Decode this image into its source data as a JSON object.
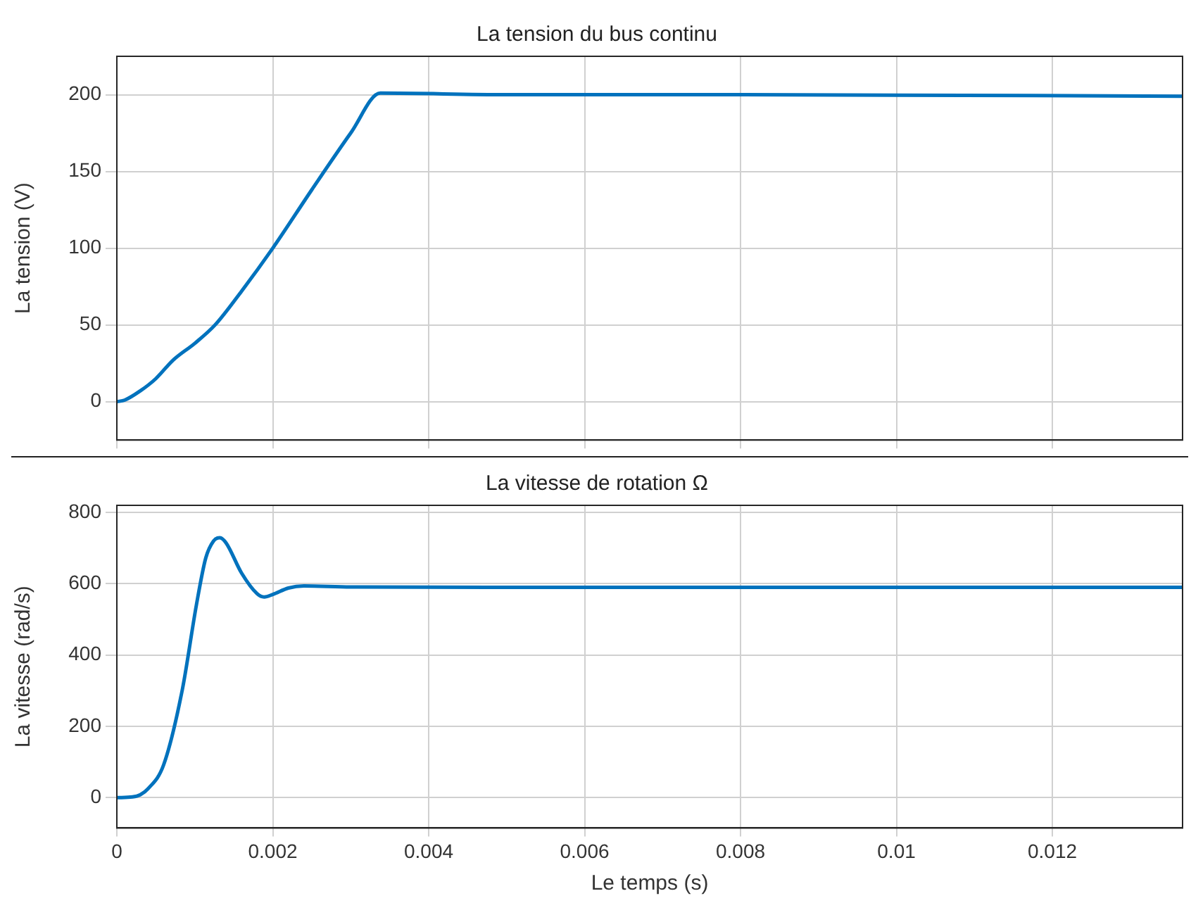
{
  "chart_data": [
    {
      "type": "line",
      "title": "La tension du bus continu",
      "ylabel": "La tension (V)",
      "series": [
        {
          "color": "#0072bd",
          "x": [
            0,
            0.0001,
            0.0003,
            0.0005,
            0.00072,
            0.001,
            0.00126,
            0.0016,
            0.002,
            0.0025,
            0.003,
            0.00338,
            0.005,
            0.008,
            0.01367
          ],
          "values": [
            0,
            1,
            7,
            15,
            27,
            38,
            50,
            72,
            100,
            138,
            175,
            201,
            200,
            200,
            199
          ]
        }
      ],
      "xlim": [
        0,
        0.01367
      ],
      "xticks": [
        0,
        0.002,
        0.004,
        0.006,
        0.008,
        0.01,
        0.012
      ],
      "ylim": [
        -25,
        225
      ],
      "yticks": [
        0,
        50,
        100,
        150,
        200
      ],
      "grid": true,
      "tick_labels": "y",
      "line_style": "solid",
      "marker": "none"
    },
    {
      "type": "line",
      "title": "La vitesse de rotation Ω",
      "xlabel": "Le temps (s)",
      "ylabel": "La vitesse (rad/s)",
      "series": [
        {
          "color": "#0072bd",
          "x": [
            0,
            0.0002,
            0.0003,
            0.0004,
            0.0006,
            0.00084,
            0.00102,
            0.00114,
            0.00124,
            0.00132,
            0.0014,
            0.0016,
            0.0018,
            0.00189,
            0.002,
            0.0022,
            0.0024,
            0.003,
            0.006,
            0.01367
          ],
          "values": [
            0,
            2,
            8,
            25,
            92,
            303,
            540,
            672,
            720,
            729,
            715,
            630,
            572,
            563,
            570,
            588,
            594,
            591,
            590,
            590
          ]
        }
      ],
      "xlim": [
        0,
        0.01367
      ],
      "xticks": [
        0,
        0.002,
        0.004,
        0.006,
        0.008,
        0.01,
        0.012
      ],
      "ylim": [
        -85,
        820
      ],
      "yticks": [
        0,
        200,
        400,
        600,
        800
      ],
      "grid": true,
      "line_style": "solid",
      "marker": "none"
    }
  ]
}
